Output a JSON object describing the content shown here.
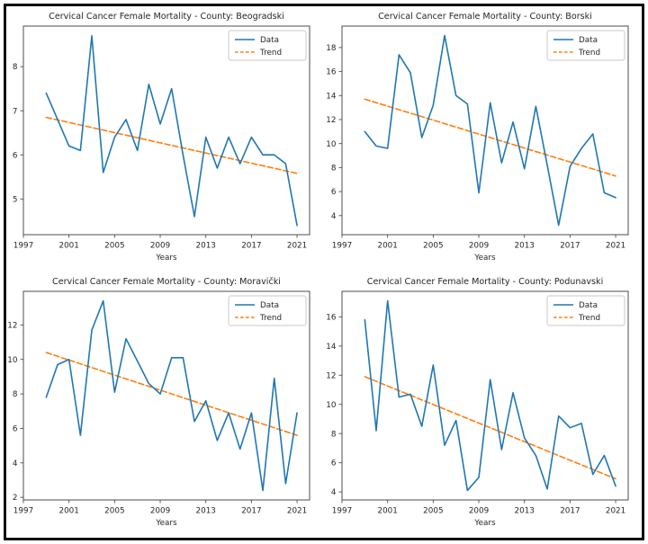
{
  "figure": {
    "background": "#ffffff",
    "border_color": "#0d0d0d",
    "xlabel": "Years",
    "legend_labels": [
      "Data",
      "Trend"
    ],
    "colors": {
      "data_line": "#1f77b4",
      "trend_line": "#ff7f0e",
      "text": "#262626",
      "spine": "#4d4d4d",
      "legend_border": "#c9c9c9"
    }
  },
  "chart_data": [
    {
      "type": "line",
      "title": "Cervical Cancer Female Mortality - County: Beogradski",
      "xlabel": "Years",
      "ylabel": "",
      "grid": false,
      "legend_position": "upper right",
      "x": [
        1999,
        2000,
        2001,
        2002,
        2003,
        2004,
        2005,
        2006,
        2007,
        2008,
        2009,
        2010,
        2011,
        2012,
        2013,
        2014,
        2015,
        2016,
        2017,
        2018,
        2019,
        2020,
        2021
      ],
      "series": [
        {
          "name": "Data",
          "style": "solid",
          "color": "#1f77b4",
          "values": [
            7.4,
            6.8,
            6.2,
            6.1,
            8.7,
            5.6,
            6.4,
            6.8,
            6.1,
            7.6,
            6.7,
            7.5,
            6.0,
            4.6,
            6.4,
            5.7,
            6.4,
            5.8,
            6.4,
            6.0,
            6.0,
            5.8,
            4.4
          ]
        },
        {
          "name": "Trend",
          "style": "dashed",
          "color": "#ff7f0e",
          "x": [
            1999,
            2021
          ],
          "values": [
            6.85,
            5.58
          ]
        }
      ],
      "xlim": [
        1997,
        2022.1
      ],
      "ylim": [
        4.19,
        8.92
      ],
      "xticks": [
        1997,
        2001,
        2005,
        2009,
        2013,
        2017,
        2021
      ],
      "yticks": [
        5,
        6,
        7,
        8
      ]
    },
    {
      "type": "line",
      "title": "Cervical Cancer Female Mortality - County: Borski",
      "xlabel": "Years",
      "ylabel": "",
      "grid": false,
      "legend_position": "upper right",
      "x": [
        1999,
        2000,
        2001,
        2002,
        2003,
        2004,
        2005,
        2006,
        2007,
        2008,
        2009,
        2010,
        2011,
        2012,
        2013,
        2014,
        2015,
        2016,
        2017,
        2018,
        2019,
        2020,
        2021
      ],
      "series": [
        {
          "name": "Data",
          "style": "solid",
          "color": "#1f77b4",
          "values": [
            11.0,
            9.8,
            9.6,
            17.4,
            15.9,
            10.5,
            13.2,
            19.0,
            14.0,
            13.3,
            5.9,
            13.4,
            8.4,
            11.8,
            7.9,
            13.1,
            8.2,
            3.2,
            8.1,
            9.6,
            10.8,
            5.9,
            5.5
          ]
        },
        {
          "name": "Trend",
          "style": "dashed",
          "color": "#ff7f0e",
          "x": [
            1999,
            2021
          ],
          "values": [
            13.7,
            7.3
          ]
        }
      ],
      "xlim": [
        1997,
        2022.1
      ],
      "ylim": [
        2.41,
        19.79
      ],
      "xticks": [
        1997,
        2001,
        2005,
        2009,
        2013,
        2017,
        2021
      ],
      "yticks": [
        4,
        6,
        8,
        10,
        12,
        14,
        16,
        18
      ]
    },
    {
      "type": "line",
      "title": "Cervical Cancer Female Mortality - County: Moravički",
      "xlabel": "Years",
      "ylabel": "",
      "grid": false,
      "legend_position": "upper right",
      "x": [
        1999,
        2000,
        2001,
        2002,
        2003,
        2004,
        2005,
        2006,
        2007,
        2008,
        2009,
        2010,
        2011,
        2012,
        2013,
        2014,
        2015,
        2016,
        2017,
        2018,
        2019,
        2020,
        2021
      ],
      "series": [
        {
          "name": "Data",
          "style": "solid",
          "color": "#1f77b4",
          "values": [
            7.8,
            9.7,
            10.0,
            5.6,
            11.7,
            13.4,
            8.1,
            11.2,
            9.9,
            8.6,
            8.0,
            10.1,
            10.1,
            6.4,
            7.6,
            5.3,
            6.9,
            4.8,
            6.9,
            2.4,
            8.9,
            2.8,
            6.9
          ]
        },
        {
          "name": "Trend",
          "style": "dashed",
          "color": "#ff7f0e",
          "x": [
            1999,
            2021
          ],
          "values": [
            10.4,
            5.6
          ]
        }
      ],
      "xlim": [
        1997,
        2022.1
      ],
      "ylim": [
        1.85,
        13.95
      ],
      "xticks": [
        1997,
        2001,
        2005,
        2009,
        2013,
        2017,
        2021
      ],
      "yticks": [
        2,
        4,
        6,
        8,
        10,
        12
      ]
    },
    {
      "type": "line",
      "title": "Cervical Cancer Female Mortality - County: Podunavski",
      "xlabel": "Years",
      "ylabel": "",
      "grid": false,
      "legend_position": "upper right",
      "x": [
        1999,
        2000,
        2001,
        2002,
        2003,
        2004,
        2005,
        2006,
        2007,
        2008,
        2009,
        2010,
        2011,
        2012,
        2013,
        2014,
        2015,
        2016,
        2017,
        2018,
        2019,
        2020,
        2021
      ],
      "series": [
        {
          "name": "Data",
          "style": "solid",
          "color": "#1f77b4",
          "values": [
            15.8,
            8.2,
            17.1,
            10.5,
            10.7,
            8.5,
            12.7,
            7.2,
            8.9,
            4.1,
            5.0,
            11.7,
            6.9,
            10.8,
            7.7,
            6.5,
            4.2,
            9.2,
            8.4,
            8.7,
            5.2,
            6.5,
            4.4
          ]
        },
        {
          "name": "Trend",
          "style": "dashed",
          "color": "#ff7f0e",
          "x": [
            1999,
            2021
          ],
          "values": [
            11.9,
            4.9
          ]
        }
      ],
      "xlim": [
        1997,
        2022.1
      ],
      "ylim": [
        3.45,
        17.75
      ],
      "xticks": [
        1997,
        2001,
        2005,
        2009,
        2013,
        2017,
        2021
      ],
      "yticks": [
        4,
        6,
        8,
        10,
        12,
        14,
        16
      ]
    }
  ]
}
